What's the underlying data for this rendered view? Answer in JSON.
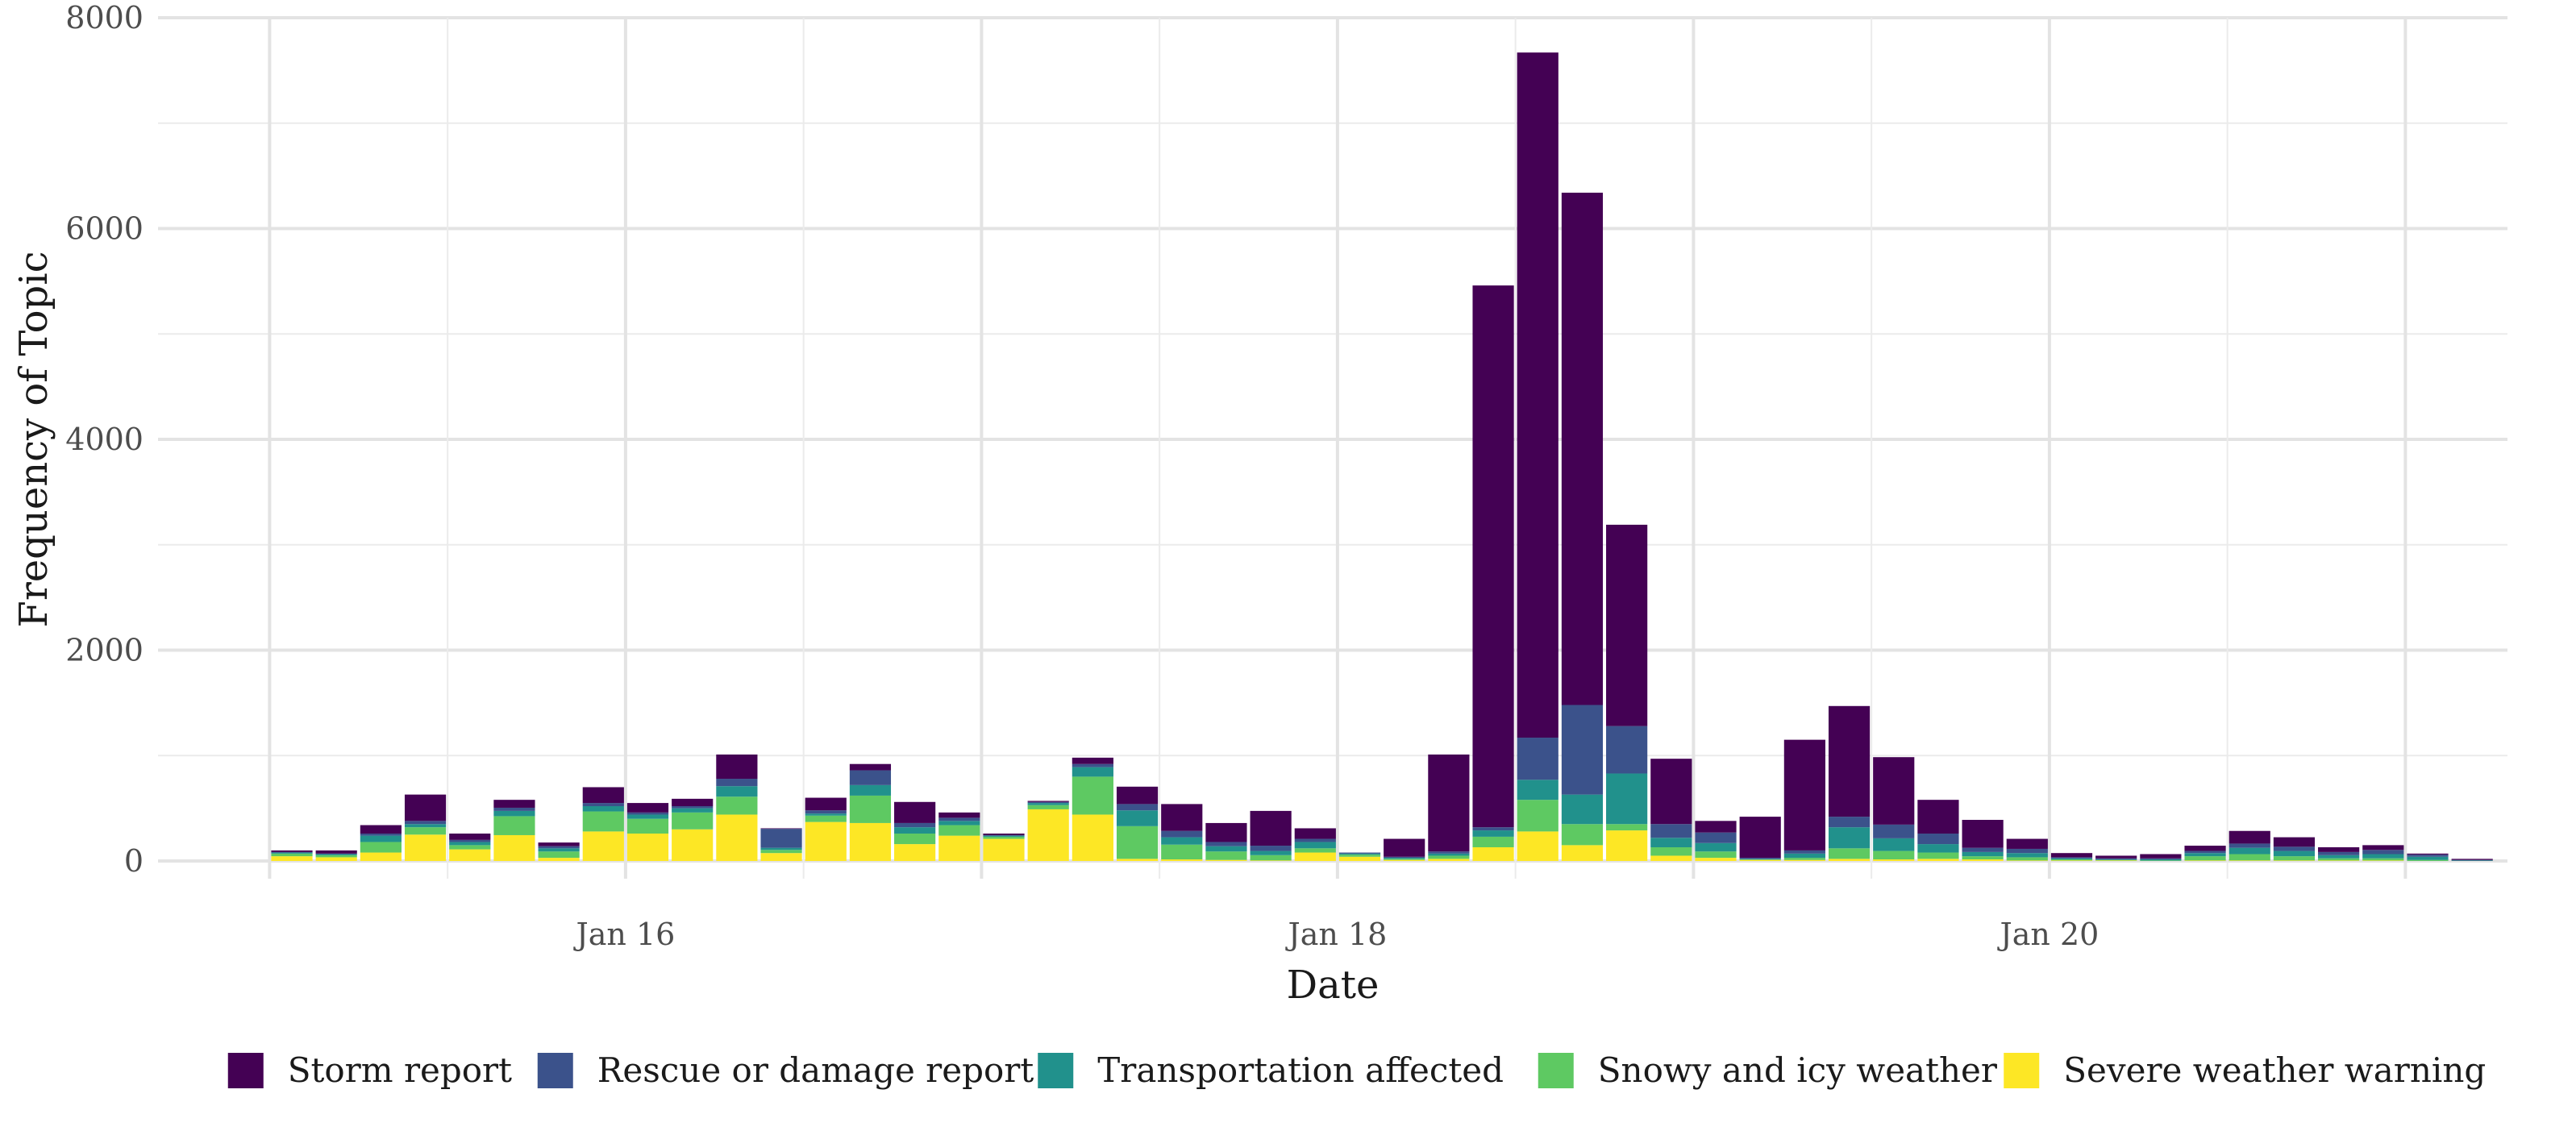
{
  "chart_data": {
    "type": "bar",
    "stacked": true,
    "xlabel": "Date",
    "ylabel": "Frequency of Topic",
    "ylim": [
      0,
      8000
    ],
    "y_ticks": [
      0,
      2000,
      4000,
      6000,
      8000
    ],
    "y_tick_labels": [
      "0",
      "2000",
      "4000",
      "6000",
      "8000"
    ],
    "x_ticks": [
      "Jan 16",
      "Jan 18",
      "Jan 20"
    ],
    "grid": true,
    "legend_position": "bottom",
    "bin": "3-hour",
    "x": [
      "2025-01-15T00:00",
      "2025-01-15T03:00",
      "2025-01-15T06:00",
      "2025-01-15T09:00",
      "2025-01-15T12:00",
      "2025-01-15T15:00",
      "2025-01-15T18:00",
      "2025-01-15T21:00",
      "2025-01-16T00:00",
      "2025-01-16T03:00",
      "2025-01-16T06:00",
      "2025-01-16T09:00",
      "2025-01-16T12:00",
      "2025-01-16T15:00",
      "2025-01-16T18:00",
      "2025-01-16T21:00",
      "2025-01-17T00:00",
      "2025-01-17T03:00",
      "2025-01-17T06:00",
      "2025-01-17T09:00",
      "2025-01-17T12:00",
      "2025-01-17T15:00",
      "2025-01-17T18:00",
      "2025-01-17T21:00",
      "2025-01-18T00:00",
      "2025-01-18T03:00",
      "2025-01-18T06:00",
      "2025-01-18T09:00",
      "2025-01-18T12:00",
      "2025-01-18T15:00",
      "2025-01-18T18:00",
      "2025-01-18T21:00",
      "2025-01-19T00:00",
      "2025-01-19T03:00",
      "2025-01-19T06:00",
      "2025-01-19T09:00",
      "2025-01-19T12:00",
      "2025-01-19T15:00",
      "2025-01-19T18:00",
      "2025-01-19T21:00",
      "2025-01-20T00:00",
      "2025-01-20T03:00",
      "2025-01-20T06:00",
      "2025-01-20T09:00",
      "2025-01-20T12:00",
      "2025-01-20T15:00",
      "2025-01-20T18:00",
      "2025-01-20T21:00",
      "2025-01-21T00:00",
      "2025-01-21T03:00"
    ],
    "series": [
      {
        "name": "Severe weather warning",
        "color": "#fde725",
        "values": [
          45,
          35,
          80,
          250,
          110,
          245,
          30,
          280,
          260,
          300,
          440,
          75,
          370,
          360,
          160,
          240,
          210,
          490,
          440,
          20,
          15,
          10,
          5,
          80,
          40,
          10,
          20,
          130,
          280,
          150,
          290,
          50,
          30,
          10,
          10,
          20,
          15,
          20,
          15,
          5,
          5,
          5,
          0,
          5,
          5,
          5,
          5,
          5,
          0,
          0
        ]
      },
      {
        "name": "Snowy and icy weather",
        "color": "#5ec962",
        "values": [
          25,
          20,
          100,
          70,
          40,
          180,
          60,
          190,
          140,
          160,
          170,
          30,
          60,
          260,
          100,
          100,
          20,
          40,
          360,
          310,
          140,
          80,
          50,
          40,
          20,
          10,
          30,
          100,
          300,
          200,
          60,
          80,
          60,
          5,
          20,
          100,
          80,
          60,
          30,
          30,
          10,
          5,
          5,
          40,
          60,
          40,
          20,
          20,
          10,
          0
        ]
      },
      {
        "name": "Transportation affected",
        "color": "#21918c",
        "values": [
          10,
          10,
          60,
          30,
          30,
          50,
          30,
          50,
          40,
          40,
          100,
          20,
          20,
          100,
          60,
          40,
          10,
          20,
          90,
          150,
          70,
          50,
          40,
          60,
          10,
          10,
          20,
          60,
          190,
          280,
          480,
          90,
          80,
          5,
          40,
          200,
          120,
          80,
          40,
          40,
          10,
          5,
          10,
          30,
          60,
          50,
          30,
          40,
          30,
          5
        ]
      },
      {
        "name": "Rescue or damage report",
        "color": "#3b528b",
        "values": [
          5,
          5,
          20,
          30,
          20,
          30,
          20,
          30,
          20,
          20,
          70,
          180,
          30,
          140,
          40,
          30,
          5,
          10,
          30,
          60,
          60,
          40,
          50,
          30,
          10,
          10,
          20,
          30,
          400,
          850,
          450,
          130,
          100,
          10,
          30,
          100,
          130,
          100,
          40,
          40,
          10,
          10,
          10,
          20,
          40,
          40,
          30,
          40,
          20,
          5
        ]
      },
      {
        "name": "Storm report",
        "color": "#440154",
        "values": [
          15,
          30,
          80,
          250,
          60,
          75,
          35,
          150,
          90,
          70,
          230,
          5,
          120,
          60,
          200,
          50,
          15,
          10,
          60,
          165,
          255,
          180,
          330,
          100,
          0,
          170,
          920,
          5140,
          6500,
          4860,
          1910,
          620,
          110,
          390,
          1050,
          1050,
          640,
          320,
          265,
          95,
          40,
          25,
          40,
          50,
          120,
          90,
          45,
          45,
          10,
          10
        ]
      }
    ]
  }
}
